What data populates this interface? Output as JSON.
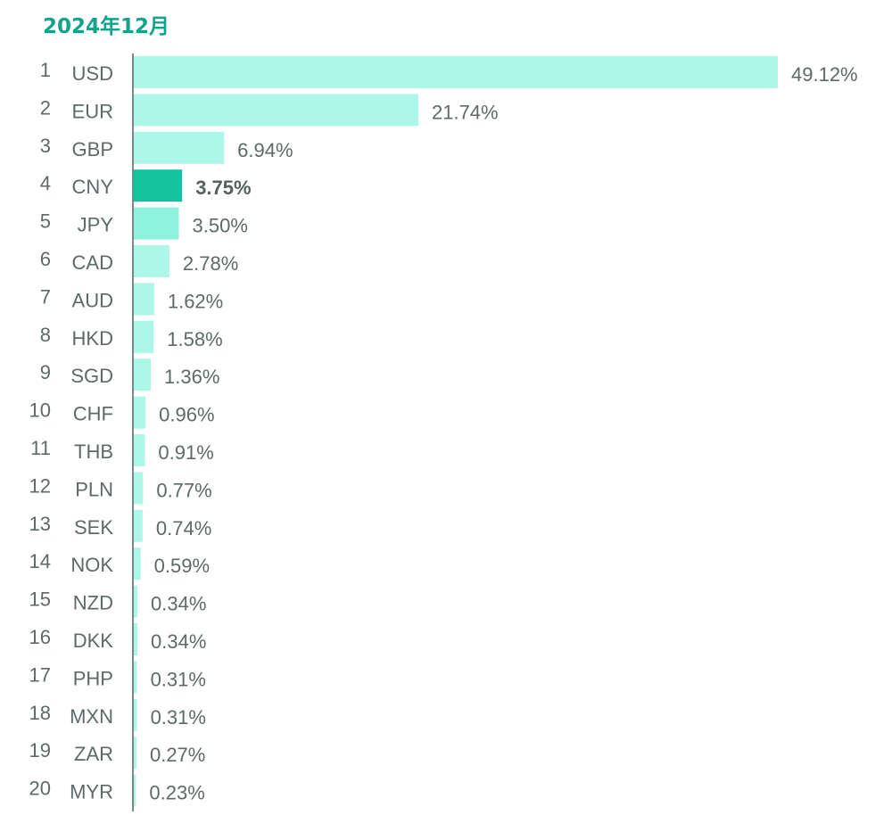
{
  "chart_data": {
    "type": "bar",
    "orientation": "horizontal",
    "title": "2024年12月",
    "highlight_color": "#13c29f",
    "bar_color": "#adf7e8",
    "axis_color": "#7a8887",
    "xlim": [
      0,
      49.12
    ],
    "rows": [
      {
        "rank": "1",
        "code": "USD",
        "value": 49.12,
        "label": "49.12%",
        "highlight": false,
        "color": "#adf7e8"
      },
      {
        "rank": "2",
        "code": "EUR",
        "value": 21.74,
        "label": "21.74%",
        "highlight": false,
        "color": "#adf7e8"
      },
      {
        "rank": "3",
        "code": "GBP",
        "value": 6.94,
        "label": "6.94%",
        "highlight": false,
        "color": "#adf7e8"
      },
      {
        "rank": "4",
        "code": "CNY",
        "value": 3.75,
        "label": "3.75%",
        "highlight": true,
        "color": "#13c29f"
      },
      {
        "rank": "5",
        "code": "JPY",
        "value": 3.5,
        "label": "3.50%",
        "highlight": false,
        "color": "#8ef2dd"
      },
      {
        "rank": "6",
        "code": "CAD",
        "value": 2.78,
        "label": "2.78%",
        "highlight": false,
        "color": "#adf7e8"
      },
      {
        "rank": "7",
        "code": "AUD",
        "value": 1.62,
        "label": "1.62%",
        "highlight": false,
        "color": "#adf7e8"
      },
      {
        "rank": "8",
        "code": "HKD",
        "value": 1.58,
        "label": "1.58%",
        "highlight": false,
        "color": "#adf7e8"
      },
      {
        "rank": "9",
        "code": "SGD",
        "value": 1.36,
        "label": "1.36%",
        "highlight": false,
        "color": "#adf7e8"
      },
      {
        "rank": "10",
        "code": "CHF",
        "value": 0.96,
        "label": "0.96%",
        "highlight": false,
        "color": "#adf7e8"
      },
      {
        "rank": "11",
        "code": "THB",
        "value": 0.91,
        "label": "0.91%",
        "highlight": false,
        "color": "#adf7e8"
      },
      {
        "rank": "12",
        "code": "PLN",
        "value": 0.77,
        "label": "0.77%",
        "highlight": false,
        "color": "#adf7e8"
      },
      {
        "rank": "13",
        "code": "SEK",
        "value": 0.74,
        "label": "0.74%",
        "highlight": false,
        "color": "#adf7e8"
      },
      {
        "rank": "14",
        "code": "NOK",
        "value": 0.59,
        "label": "0.59%",
        "highlight": false,
        "color": "#adf7e8"
      },
      {
        "rank": "15",
        "code": "NZD",
        "value": 0.34,
        "label": "0.34%",
        "highlight": false,
        "color": "#adf7e8"
      },
      {
        "rank": "16",
        "code": "DKK",
        "value": 0.34,
        "label": "0.34%",
        "highlight": false,
        "color": "#adf7e8"
      },
      {
        "rank": "17",
        "code": "PHP",
        "value": 0.31,
        "label": "0.31%",
        "highlight": false,
        "color": "#adf7e8"
      },
      {
        "rank": "18",
        "code": "MXN",
        "value": 0.31,
        "label": "0.31%",
        "highlight": false,
        "color": "#adf7e8"
      },
      {
        "rank": "19",
        "code": "ZAR",
        "value": 0.27,
        "label": "0.27%",
        "highlight": false,
        "color": "#adf7e8"
      },
      {
        "rank": "20",
        "code": "MYR",
        "value": 0.23,
        "label": "0.23%",
        "highlight": false,
        "color": "#adf7e8"
      }
    ]
  }
}
